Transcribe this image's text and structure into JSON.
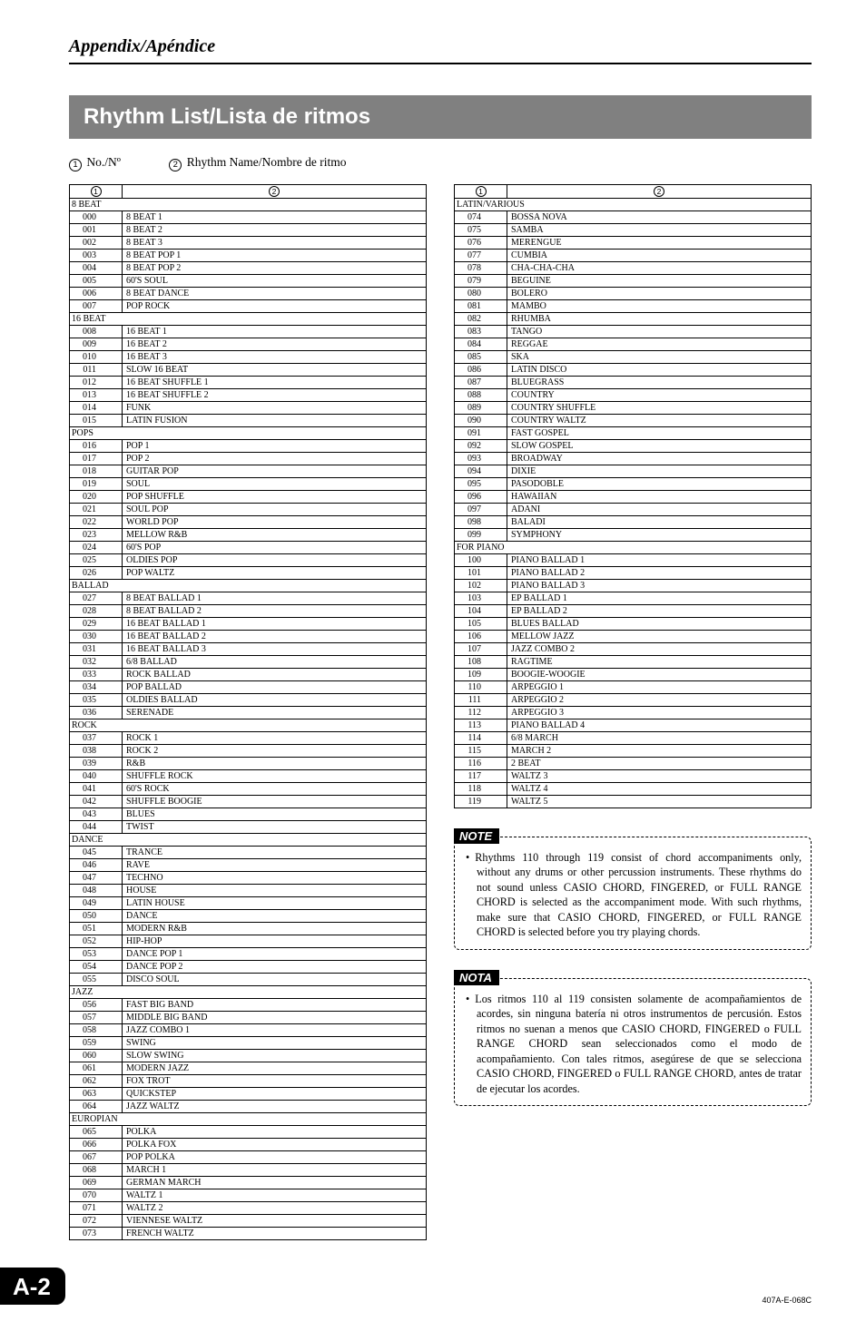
{
  "running_head": "Appendix/Apéndice",
  "title": "Rhythm List/Lista de ritmos",
  "legend": {
    "col1": "No./Nº",
    "col2": "Rhythm Name/Nombre de ritmo"
  },
  "header_symbol_1": "1",
  "header_symbol_2": "2",
  "left_rows": [
    {
      "cat": "8 BEAT"
    },
    {
      "n": "000",
      "name": "8 BEAT 1"
    },
    {
      "n": "001",
      "name": "8 BEAT 2"
    },
    {
      "n": "002",
      "name": "8 BEAT 3"
    },
    {
      "n": "003",
      "name": "8 BEAT POP 1"
    },
    {
      "n": "004",
      "name": "8 BEAT POP 2"
    },
    {
      "n": "005",
      "name": "60'S SOUL"
    },
    {
      "n": "006",
      "name": "8 BEAT DANCE"
    },
    {
      "n": "007",
      "name": "POP ROCK"
    },
    {
      "cat": "16 BEAT"
    },
    {
      "n": "008",
      "name": "16 BEAT 1"
    },
    {
      "n": "009",
      "name": "16 BEAT 2"
    },
    {
      "n": "010",
      "name": "16 BEAT 3"
    },
    {
      "n": "011",
      "name": "SLOW 16 BEAT"
    },
    {
      "n": "012",
      "name": "16 BEAT SHUFFLE 1"
    },
    {
      "n": "013",
      "name": "16 BEAT SHUFFLE 2"
    },
    {
      "n": "014",
      "name": "FUNK"
    },
    {
      "n": "015",
      "name": "LATIN FUSION"
    },
    {
      "cat": "POPS"
    },
    {
      "n": "016",
      "name": "POP 1"
    },
    {
      "n": "017",
      "name": "POP 2"
    },
    {
      "n": "018",
      "name": "GUITAR POP"
    },
    {
      "n": "019",
      "name": "SOUL"
    },
    {
      "n": "020",
      "name": "POP SHUFFLE"
    },
    {
      "n": "021",
      "name": "SOUL POP"
    },
    {
      "n": "022",
      "name": "WORLD POP"
    },
    {
      "n": "023",
      "name": "MELLOW R&B"
    },
    {
      "n": "024",
      "name": "60'S POP"
    },
    {
      "n": "025",
      "name": "OLDIES POP"
    },
    {
      "n": "026",
      "name": "POP WALTZ"
    },
    {
      "cat": "BALLAD"
    },
    {
      "n": "027",
      "name": "8 BEAT BALLAD 1"
    },
    {
      "n": "028",
      "name": "8 BEAT BALLAD 2"
    },
    {
      "n": "029",
      "name": "16 BEAT BALLAD 1"
    },
    {
      "n": "030",
      "name": "16 BEAT BALLAD 2"
    },
    {
      "n": "031",
      "name": "16 BEAT BALLAD 3"
    },
    {
      "n": "032",
      "name": "6/8 BALLAD"
    },
    {
      "n": "033",
      "name": "ROCK BALLAD"
    },
    {
      "n": "034",
      "name": "POP BALLAD"
    },
    {
      "n": "035",
      "name": "OLDIES BALLAD"
    },
    {
      "n": "036",
      "name": "SERENADE"
    },
    {
      "cat": "ROCK"
    },
    {
      "n": "037",
      "name": "ROCK 1"
    },
    {
      "n": "038",
      "name": "ROCK 2"
    },
    {
      "n": "039",
      "name": "R&B"
    },
    {
      "n": "040",
      "name": "SHUFFLE ROCK"
    },
    {
      "n": "041",
      "name": "60'S ROCK"
    },
    {
      "n": "042",
      "name": "SHUFFLE BOOGIE"
    },
    {
      "n": "043",
      "name": "BLUES"
    },
    {
      "n": "044",
      "name": "TWIST"
    },
    {
      "cat": "DANCE"
    },
    {
      "n": "045",
      "name": "TRANCE"
    },
    {
      "n": "046",
      "name": "RAVE"
    },
    {
      "n": "047",
      "name": "TECHNO"
    },
    {
      "n": "048",
      "name": "HOUSE"
    },
    {
      "n": "049",
      "name": "LATIN HOUSE"
    },
    {
      "n": "050",
      "name": "DANCE"
    },
    {
      "n": "051",
      "name": "MODERN R&B"
    },
    {
      "n": "052",
      "name": "HIP-HOP"
    },
    {
      "n": "053",
      "name": "DANCE POP 1"
    },
    {
      "n": "054",
      "name": "DANCE POP 2"
    },
    {
      "n": "055",
      "name": "DISCO SOUL"
    },
    {
      "cat": "JAZZ"
    },
    {
      "n": "056",
      "name": "FAST BIG BAND"
    },
    {
      "n": "057",
      "name": "MIDDLE BIG BAND"
    },
    {
      "n": "058",
      "name": "JAZZ COMBO 1"
    },
    {
      "n": "059",
      "name": "SWING"
    },
    {
      "n": "060",
      "name": "SLOW SWING"
    },
    {
      "n": "061",
      "name": "MODERN JAZZ"
    },
    {
      "n": "062",
      "name": "FOX TROT"
    },
    {
      "n": "063",
      "name": "QUICKSTEP"
    },
    {
      "n": "064",
      "name": "JAZZ WALTZ"
    },
    {
      "cat": "EUROPIAN"
    },
    {
      "n": "065",
      "name": "POLKA"
    },
    {
      "n": "066",
      "name": "POLKA FOX"
    },
    {
      "n": "067",
      "name": "POP POLKA"
    },
    {
      "n": "068",
      "name": "MARCH 1"
    },
    {
      "n": "069",
      "name": "GERMAN MARCH"
    },
    {
      "n": "070",
      "name": "WALTZ 1"
    },
    {
      "n": "071",
      "name": "WALTZ 2"
    },
    {
      "n": "072",
      "name": "VIENNESE WALTZ"
    },
    {
      "n": "073",
      "name": "FRENCH WALTZ"
    }
  ],
  "right_rows": [
    {
      "cat": "LATIN/VARIOUS"
    },
    {
      "n": "074",
      "name": "BOSSA NOVA"
    },
    {
      "n": "075",
      "name": "SAMBA"
    },
    {
      "n": "076",
      "name": "MERENGUE"
    },
    {
      "n": "077",
      "name": "CUMBIA"
    },
    {
      "n": "078",
      "name": "CHA-CHA-CHA"
    },
    {
      "n": "079",
      "name": "BEGUINE"
    },
    {
      "n": "080",
      "name": "BOLERO"
    },
    {
      "n": "081",
      "name": "MAMBO"
    },
    {
      "n": "082",
      "name": "RHUMBA"
    },
    {
      "n": "083",
      "name": "TANGO"
    },
    {
      "n": "084",
      "name": "REGGAE"
    },
    {
      "n": "085",
      "name": "SKA"
    },
    {
      "n": "086",
      "name": "LATIN DISCO"
    },
    {
      "n": "087",
      "name": "BLUEGRASS"
    },
    {
      "n": "088",
      "name": "COUNTRY"
    },
    {
      "n": "089",
      "name": "COUNTRY SHUFFLE"
    },
    {
      "n": "090",
      "name": "COUNTRY WALTZ"
    },
    {
      "n": "091",
      "name": "FAST GOSPEL"
    },
    {
      "n": "092",
      "name": "SLOW GOSPEL"
    },
    {
      "n": "093",
      "name": "BROADWAY"
    },
    {
      "n": "094",
      "name": "DIXIE"
    },
    {
      "n": "095",
      "name": "PASODOBLE"
    },
    {
      "n": "096",
      "name": "HAWAIIAN"
    },
    {
      "n": "097",
      "name": "ADANI"
    },
    {
      "n": "098",
      "name": "BALADI"
    },
    {
      "n": "099",
      "name": "SYMPHONY"
    },
    {
      "cat": "FOR PIANO"
    },
    {
      "n": "100",
      "name": "PIANO BALLAD 1"
    },
    {
      "n": "101",
      "name": "PIANO BALLAD 2"
    },
    {
      "n": "102",
      "name": "PIANO BALLAD 3"
    },
    {
      "n": "103",
      "name": "EP BALLAD 1"
    },
    {
      "n": "104",
      "name": "EP BALLAD 2"
    },
    {
      "n": "105",
      "name": "BLUES BALLAD"
    },
    {
      "n": "106",
      "name": "MELLOW JAZZ"
    },
    {
      "n": "107",
      "name": "JAZZ COMBO 2"
    },
    {
      "n": "108",
      "name": "RAGTIME"
    },
    {
      "n": "109",
      "name": "BOOGIE-WOOGIE"
    },
    {
      "n": "110",
      "name": "ARPEGGIO 1"
    },
    {
      "n": "111",
      "name": "ARPEGGIO 2"
    },
    {
      "n": "112",
      "name": "ARPEGGIO 3"
    },
    {
      "n": "113",
      "name": "PIANO BALLAD 4"
    },
    {
      "n": "114",
      "name": "6/8 MARCH"
    },
    {
      "n": "115",
      "name": "MARCH 2"
    },
    {
      "n": "116",
      "name": "2 BEAT"
    },
    {
      "n": "117",
      "name": "WALTZ 3"
    },
    {
      "n": "118",
      "name": "WALTZ 4"
    },
    {
      "n": "119",
      "name": "WALTZ 5"
    }
  ],
  "note": {
    "label": "NOTE",
    "text": "Rhythms 110 through 119 consist of chord accompaniments only, without any drums or other percussion instruments. These rhythms do not sound unless CASIO CHORD, FINGERED, or FULL RANGE CHORD is selected as the accompaniment mode. With such rhythms, make sure that CASIO CHORD, FINGERED, or FULL RANGE CHORD is selected before you try playing chords."
  },
  "nota": {
    "label": "NOTA",
    "text": "Los ritmos 110 al 119 consisten solamente de acompañamientos de acordes, sin ninguna batería ni otros instrumentos de percusión. Estos ritmos no suenan a menos que CASIO CHORD, FINGERED o FULL RANGE CHORD sean seleccionados como el modo de acompañamiento. Con tales ritmos, asegúrese de que se selecciona CASIO CHORD, FINGERED o FULL RANGE CHORD, antes de tratar de ejecutar los acordes."
  },
  "page_number": "A-2",
  "footer_code": "407A-E-068C"
}
